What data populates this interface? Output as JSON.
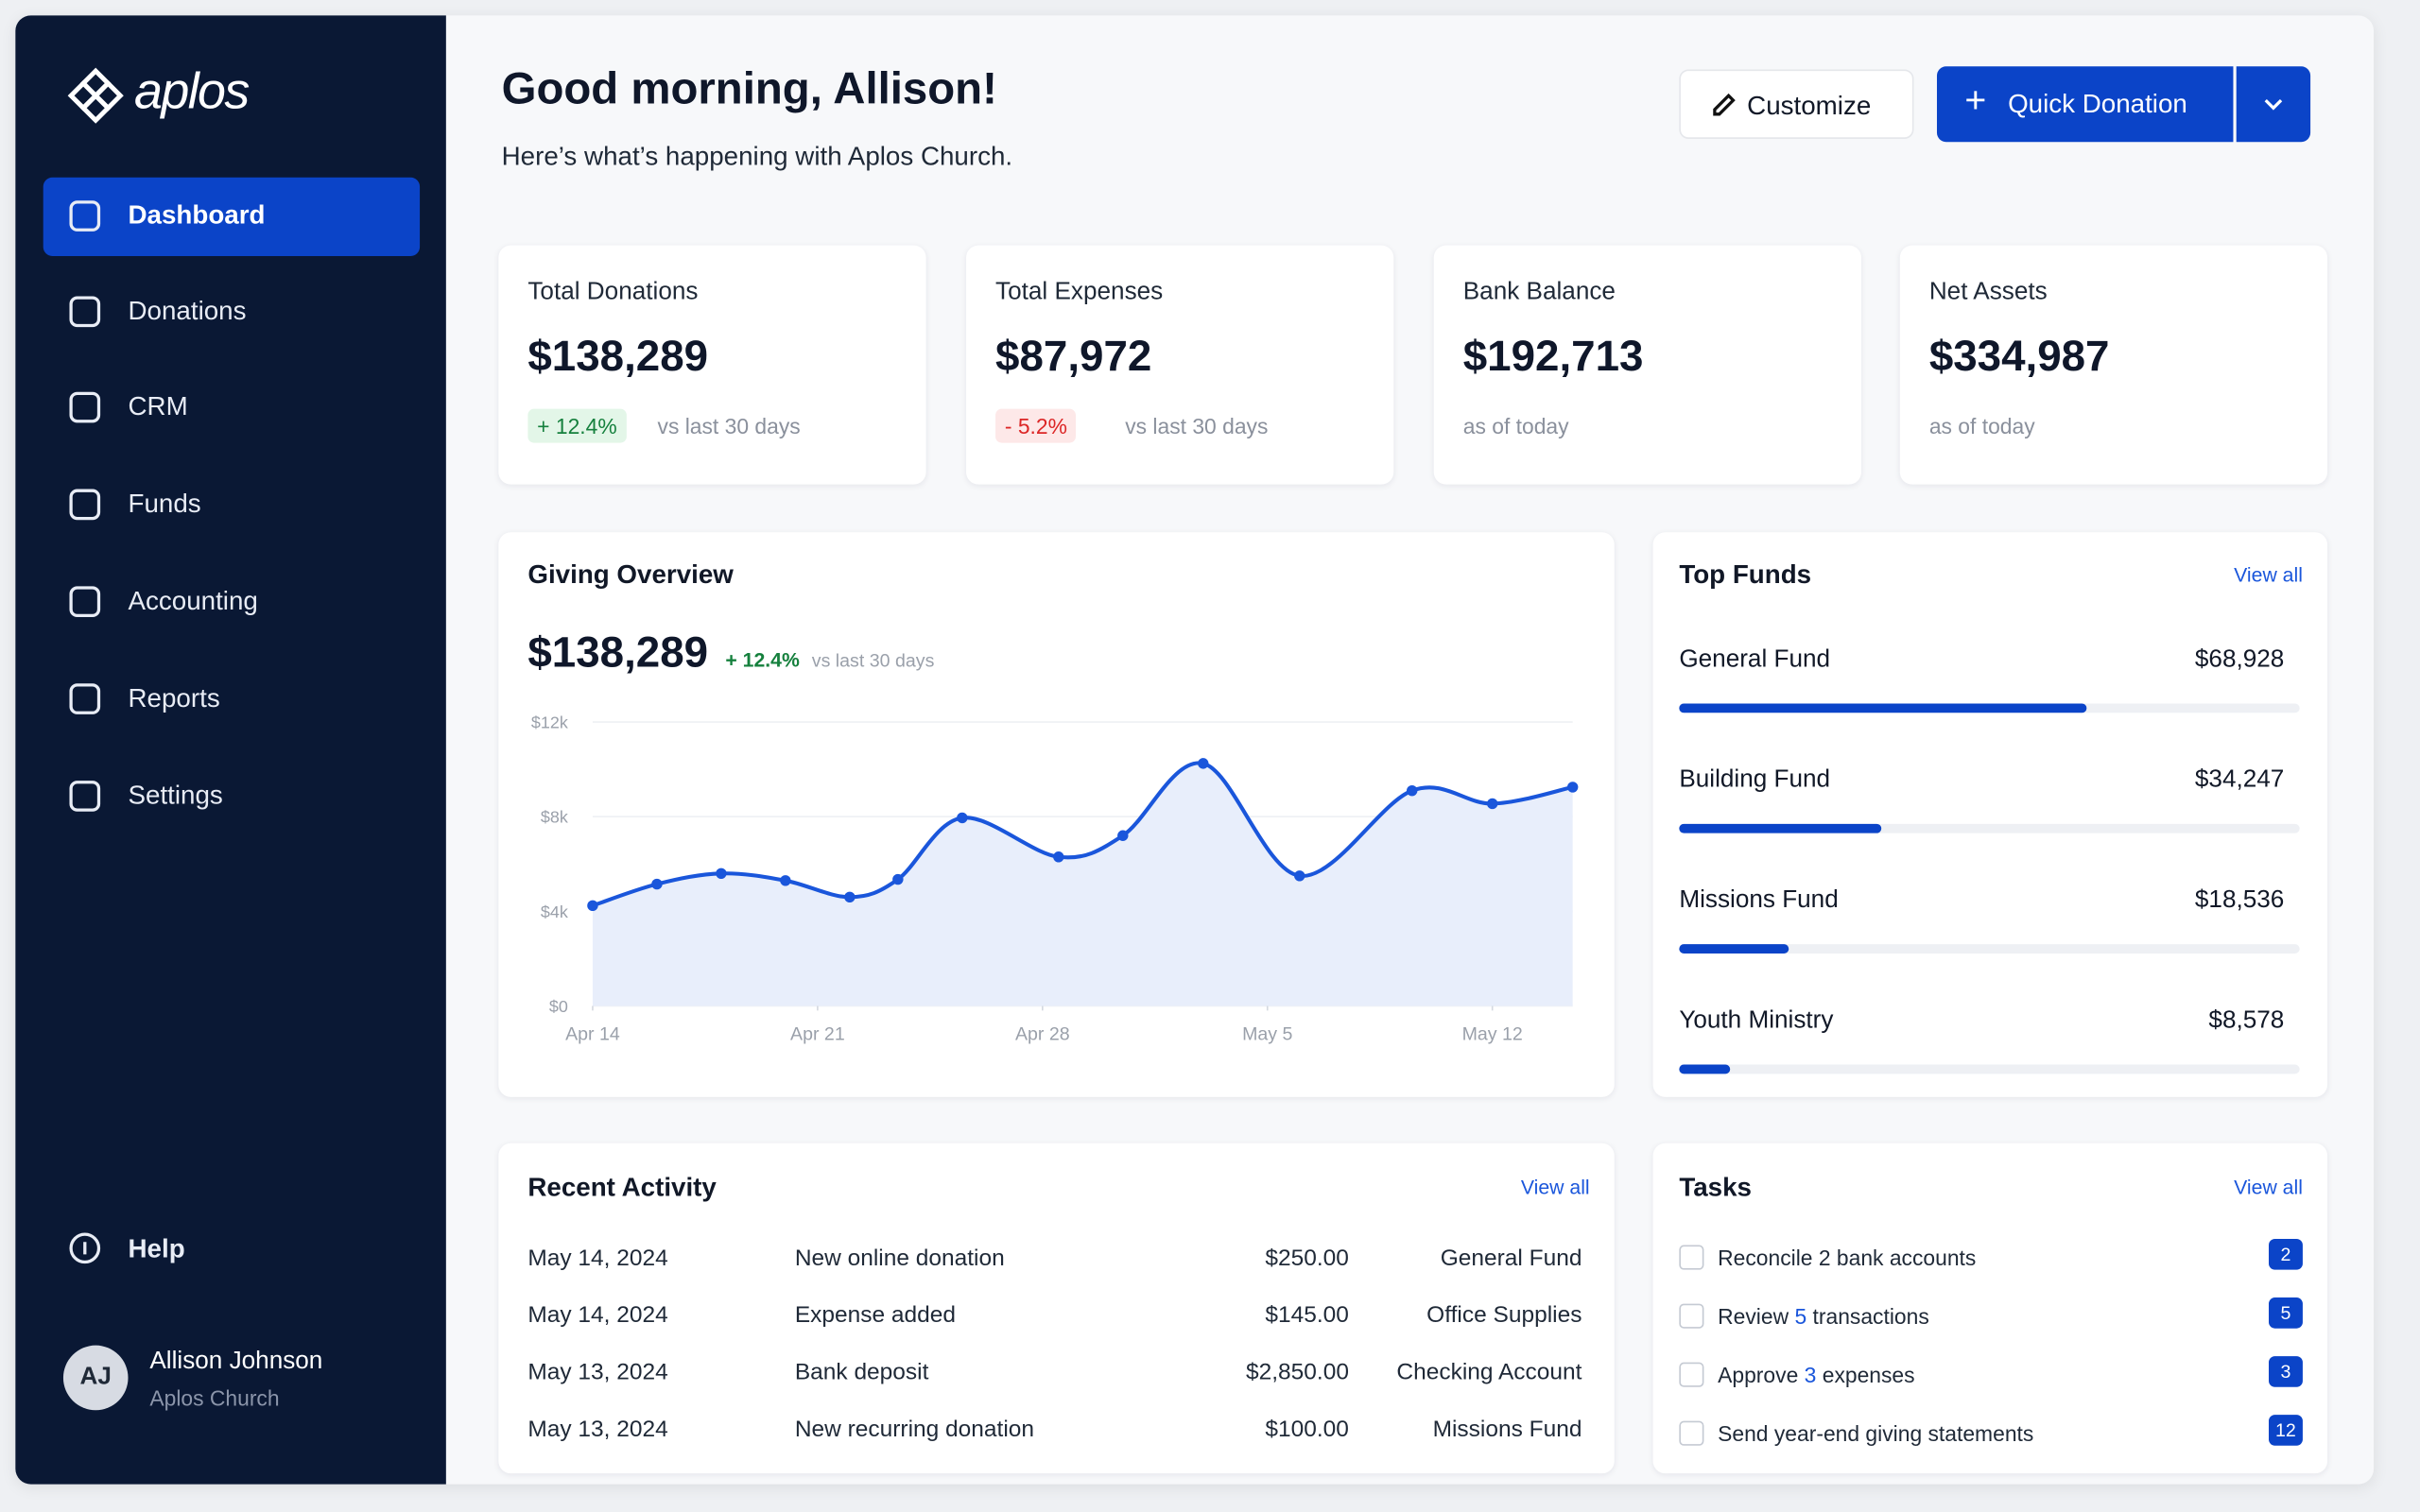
{
  "brand": "aplos",
  "nav": [
    "Dashboard",
    "Donations",
    "CRM",
    "Funds",
    "Accounting",
    "Reports",
    "Settings"
  ],
  "help": "Help",
  "user": {
    "initials": "AJ",
    "name": "Allison Johnson",
    "org": "Aplos Church"
  },
  "header": {
    "title": "Good morning, Allison!",
    "subtitle": "Here’s what’s happening with Aplos Church.",
    "customize": "Customize",
    "quick_donation": "Quick Donation"
  },
  "kpis": [
    {
      "label": "Total Donations",
      "value": "$138,289",
      "change": "+ 12.4%",
      "note": "vs last 30 days"
    },
    {
      "label": "Total Expenses",
      "value": "$87,972",
      "change": "- 5.2%",
      "note": "vs last 30 days"
    },
    {
      "label": "Bank Balance",
      "value": "$192,713",
      "note": "as of today"
    },
    {
      "label": "Net Assets",
      "value": "$334,987",
      "note": "as of today"
    }
  ],
  "giving": {
    "title": "Giving Overview",
    "total": "$138,289",
    "change": "+ 12.4%",
    "note": "vs last 30 days",
    "chart": {
      "type": "line",
      "color": "#1a56db",
      "x": [
        0,
        2,
        4,
        6,
        8,
        9.5,
        11.5,
        14.5,
        16.5,
        19,
        22,
        25.5,
        28,
        30.5
      ],
      "values": [
        4240,
        5150,
        5600,
        5300,
        4600,
        5350,
        7950,
        6300,
        7200,
        10250,
        5500,
        9100,
        8550,
        9250
      ],
      "xlim": [
        0,
        30.5
      ],
      "xticks": [
        {
          "value": 0,
          "label": "Apr 14"
        },
        {
          "value": 7,
          "label": "Apr 21"
        },
        {
          "value": 14,
          "label": "Apr 28"
        },
        {
          "value": 21,
          "label": "May 5"
        },
        {
          "value": 28,
          "label": "May 12"
        }
      ],
      "ylim": [
        0,
        12000
      ],
      "yticks": [
        {
          "value": 0,
          "label": "$0"
        },
        {
          "value": 4000,
          "label": "$4k"
        },
        {
          "value": 8000,
          "label": "$8k"
        },
        {
          "value": 12000,
          "label": "$12k"
        }
      ]
    }
  },
  "top_funds": {
    "title": "Top Funds",
    "view_all": "View all",
    "items": [
      {
        "name": "General Fund",
        "value": 68928,
        "label": "$68,928"
      },
      {
        "name": "Building Fund",
        "value": 34247,
        "label": "$34,247"
      },
      {
        "name": "Missions Fund",
        "value": 18536,
        "label": "$18,536"
      },
      {
        "name": "Youth Ministry",
        "value": 8578,
        "label": "$8,578"
      }
    ]
  },
  "activity": {
    "title": "Recent Activity",
    "view_all": "View all",
    "rows": [
      [
        "May 14, 2024",
        "New online donation",
        "$250.00",
        "General Fund"
      ],
      [
        "May 14, 2024",
        "Expense added",
        "$145.00",
        "Office Supplies"
      ],
      [
        "May 13, 2024",
        "Bank deposit",
        "$2,850.00",
        "Checking Account"
      ],
      [
        "May 13, 2024",
        "New recurring donation",
        "$100.00",
        "Missions Fund"
      ]
    ]
  },
  "tasks": {
    "title": "Tasks",
    "view_all": "View all",
    "items": [
      {
        "parts": [
          "Reconcile 2 bank accounts"
        ],
        "count": "2"
      },
      {
        "parts": [
          "Review ",
          "5",
          " transactions"
        ],
        "count": "5"
      },
      {
        "parts": [
          "Approve ",
          "3",
          " expenses"
        ],
        "count": "3"
      },
      {
        "parts": [
          "Send year-end giving statements"
        ],
        "count": "12"
      }
    ]
  }
}
